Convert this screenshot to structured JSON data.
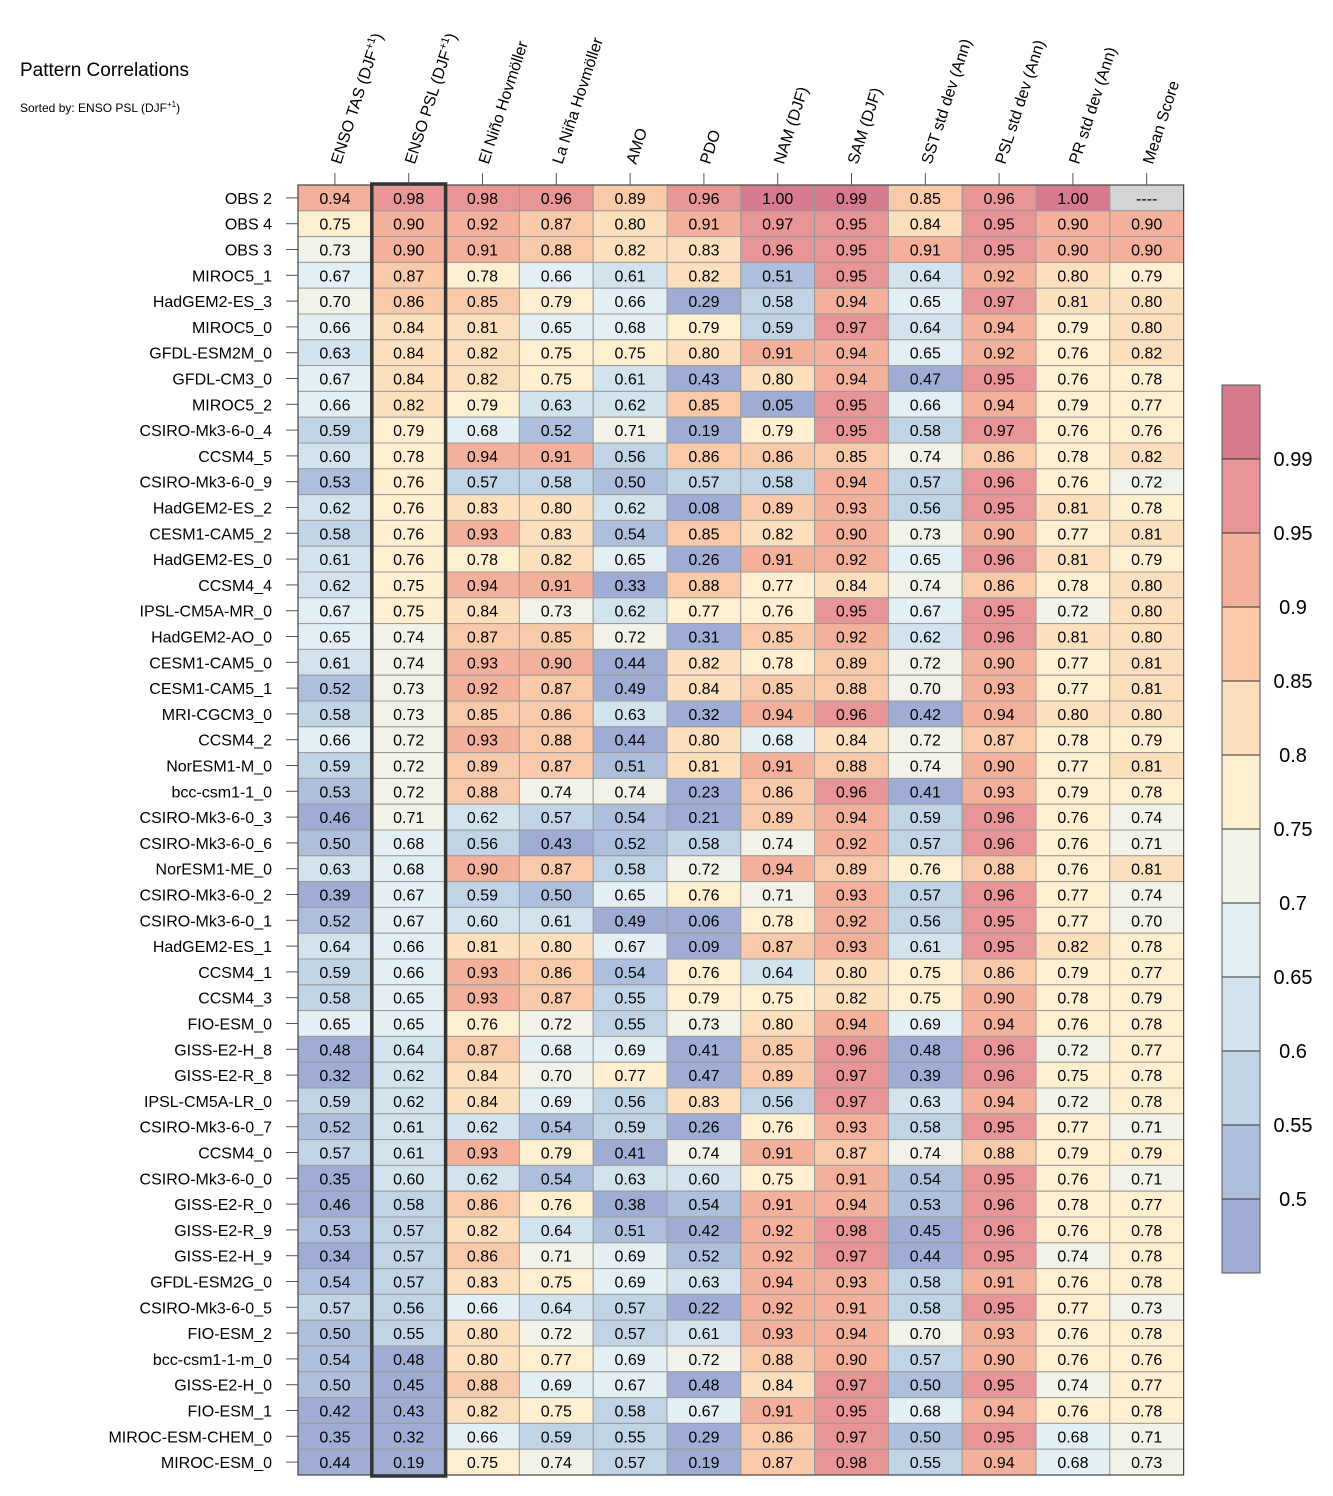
{
  "title": "Pattern Correlations",
  "subtitle": {
    "prefix": "Sorted by: ENSO PSL (DJF",
    "sup": "+1",
    "suffix": ")"
  },
  "chart_data": {
    "type": "heatmap",
    "columns": [
      {
        "label": "ENSO TAS (DJF",
        "sup": "+1",
        "tail": ")"
      },
      {
        "label": "ENSO PSL (DJF",
        "sup": "+1",
        "tail": ")"
      },
      {
        "label": "El Niño Hovmöller"
      },
      {
        "label": "La Niña Hovmöller"
      },
      {
        "label": "AMO"
      },
      {
        "label": "PDO"
      },
      {
        "label": "NAM (DJF)"
      },
      {
        "label": "SAM (DJF)"
      },
      {
        "label": "SST std dev (Ann)"
      },
      {
        "label": "PSL std dev (Ann)"
      },
      {
        "label": "PR std dev (Ann)"
      },
      {
        "label": "Mean Score"
      }
    ],
    "sorted_column_index": 1,
    "missing_label": "----",
    "rows": [
      {
        "name": "OBS 2",
        "values": [
          0.94,
          0.98,
          0.98,
          0.96,
          0.89,
          0.96,
          1.0,
          0.99,
          0.85,
          0.96,
          1.0,
          null
        ]
      },
      {
        "name": "OBS 4",
        "values": [
          0.75,
          0.9,
          0.92,
          0.87,
          0.8,
          0.91,
          0.97,
          0.95,
          0.84,
          0.95,
          0.9,
          0.9
        ]
      },
      {
        "name": "OBS 3",
        "values": [
          0.73,
          0.9,
          0.91,
          0.88,
          0.82,
          0.83,
          0.96,
          0.95,
          0.91,
          0.95,
          0.9,
          0.9
        ]
      },
      {
        "name": "MIROC5_1",
        "values": [
          0.67,
          0.87,
          0.78,
          0.66,
          0.61,
          0.82,
          0.51,
          0.95,
          0.64,
          0.92,
          0.8,
          0.79
        ]
      },
      {
        "name": "HadGEM2-ES_3",
        "values": [
          0.7,
          0.86,
          0.85,
          0.79,
          0.66,
          0.29,
          0.58,
          0.94,
          0.65,
          0.97,
          0.81,
          0.8
        ]
      },
      {
        "name": "MIROC5_0",
        "values": [
          0.66,
          0.84,
          0.81,
          0.65,
          0.68,
          0.79,
          0.59,
          0.97,
          0.64,
          0.94,
          0.79,
          0.8
        ]
      },
      {
        "name": "GFDL-ESM2M_0",
        "values": [
          0.63,
          0.84,
          0.82,
          0.75,
          0.75,
          0.8,
          0.91,
          0.94,
          0.65,
          0.92,
          0.76,
          0.82
        ]
      },
      {
        "name": "GFDL-CM3_0",
        "values": [
          0.67,
          0.84,
          0.82,
          0.75,
          0.61,
          0.43,
          0.8,
          0.94,
          0.47,
          0.95,
          0.76,
          0.78
        ]
      },
      {
        "name": "MIROC5_2",
        "values": [
          0.66,
          0.82,
          0.79,
          0.63,
          0.62,
          0.85,
          0.05,
          0.95,
          0.66,
          0.94,
          0.79,
          0.77
        ]
      },
      {
        "name": "CSIRO-Mk3-6-0_4",
        "values": [
          0.59,
          0.79,
          0.68,
          0.52,
          0.71,
          0.19,
          0.79,
          0.95,
          0.58,
          0.97,
          0.76,
          0.76
        ]
      },
      {
        "name": "CCSM4_5",
        "values": [
          0.6,
          0.78,
          0.94,
          0.91,
          0.56,
          0.86,
          0.86,
          0.85,
          0.74,
          0.86,
          0.78,
          0.82
        ]
      },
      {
        "name": "CSIRO-Mk3-6-0_9",
        "values": [
          0.53,
          0.76,
          0.57,
          0.58,
          0.5,
          0.57,
          0.58,
          0.94,
          0.57,
          0.96,
          0.76,
          0.72
        ]
      },
      {
        "name": "HadGEM2-ES_2",
        "values": [
          0.62,
          0.76,
          0.83,
          0.8,
          0.62,
          0.08,
          0.89,
          0.93,
          0.56,
          0.95,
          0.81,
          0.78
        ]
      },
      {
        "name": "CESM1-CAM5_2",
        "values": [
          0.58,
          0.76,
          0.93,
          0.83,
          0.54,
          0.85,
          0.82,
          0.9,
          0.73,
          0.9,
          0.77,
          0.81
        ]
      },
      {
        "name": "HadGEM2-ES_0",
        "values": [
          0.61,
          0.76,
          0.78,
          0.82,
          0.65,
          0.26,
          0.91,
          0.92,
          0.65,
          0.96,
          0.81,
          0.79
        ]
      },
      {
        "name": "CCSM4_4",
        "values": [
          0.62,
          0.75,
          0.94,
          0.91,
          0.33,
          0.88,
          0.77,
          0.84,
          0.74,
          0.86,
          0.78,
          0.8
        ]
      },
      {
        "name": "IPSL-CM5A-MR_0",
        "values": [
          0.67,
          0.75,
          0.84,
          0.73,
          0.62,
          0.77,
          0.76,
          0.95,
          0.67,
          0.95,
          0.72,
          0.8
        ]
      },
      {
        "name": "HadGEM2-AO_0",
        "values": [
          0.65,
          0.74,
          0.87,
          0.85,
          0.72,
          0.31,
          0.85,
          0.92,
          0.62,
          0.96,
          0.81,
          0.8
        ]
      },
      {
        "name": "CESM1-CAM5_0",
        "values": [
          0.61,
          0.74,
          0.93,
          0.9,
          0.44,
          0.82,
          0.78,
          0.89,
          0.72,
          0.9,
          0.77,
          0.81
        ]
      },
      {
        "name": "CESM1-CAM5_1",
        "values": [
          0.52,
          0.73,
          0.92,
          0.87,
          0.49,
          0.84,
          0.85,
          0.88,
          0.7,
          0.93,
          0.77,
          0.81
        ]
      },
      {
        "name": "MRI-CGCM3_0",
        "values": [
          0.58,
          0.73,
          0.85,
          0.86,
          0.63,
          0.32,
          0.94,
          0.96,
          0.42,
          0.94,
          0.8,
          0.8
        ]
      },
      {
        "name": "CCSM4_2",
        "values": [
          0.66,
          0.72,
          0.93,
          0.88,
          0.44,
          0.8,
          0.68,
          0.84,
          0.72,
          0.87,
          0.78,
          0.79
        ]
      },
      {
        "name": "NorESM1-M_0",
        "values": [
          0.59,
          0.72,
          0.89,
          0.87,
          0.51,
          0.81,
          0.91,
          0.88,
          0.74,
          0.9,
          0.77,
          0.81
        ]
      },
      {
        "name": "bcc-csm1-1_0",
        "values": [
          0.53,
          0.72,
          0.88,
          0.74,
          0.74,
          0.23,
          0.86,
          0.96,
          0.41,
          0.93,
          0.79,
          0.78
        ]
      },
      {
        "name": "CSIRO-Mk3-6-0_3",
        "values": [
          0.46,
          0.71,
          0.62,
          0.57,
          0.54,
          0.21,
          0.89,
          0.94,
          0.59,
          0.96,
          0.76,
          0.74
        ]
      },
      {
        "name": "CSIRO-Mk3-6-0_6",
        "values": [
          0.5,
          0.68,
          0.56,
          0.43,
          0.52,
          0.58,
          0.74,
          0.92,
          0.57,
          0.96,
          0.76,
          0.71
        ]
      },
      {
        "name": "NorESM1-ME_0",
        "values": [
          0.63,
          0.68,
          0.9,
          0.87,
          0.58,
          0.72,
          0.94,
          0.89,
          0.76,
          0.88,
          0.76,
          0.81
        ]
      },
      {
        "name": "CSIRO-Mk3-6-0_2",
        "values": [
          0.39,
          0.67,
          0.59,
          0.5,
          0.65,
          0.76,
          0.71,
          0.93,
          0.57,
          0.96,
          0.77,
          0.74
        ]
      },
      {
        "name": "CSIRO-Mk3-6-0_1",
        "values": [
          0.52,
          0.67,
          0.6,
          0.61,
          0.49,
          0.06,
          0.78,
          0.92,
          0.56,
          0.95,
          0.77,
          0.7
        ]
      },
      {
        "name": "HadGEM2-ES_1",
        "values": [
          0.64,
          0.66,
          0.81,
          0.8,
          0.67,
          0.09,
          0.87,
          0.93,
          0.61,
          0.95,
          0.82,
          0.78
        ]
      },
      {
        "name": "CCSM4_1",
        "values": [
          0.59,
          0.66,
          0.93,
          0.86,
          0.54,
          0.76,
          0.64,
          0.8,
          0.75,
          0.86,
          0.79,
          0.77
        ]
      },
      {
        "name": "CCSM4_3",
        "values": [
          0.58,
          0.65,
          0.93,
          0.87,
          0.55,
          0.79,
          0.75,
          0.82,
          0.75,
          0.9,
          0.78,
          0.79
        ]
      },
      {
        "name": "FIO-ESM_0",
        "values": [
          0.65,
          0.65,
          0.76,
          0.72,
          0.55,
          0.73,
          0.8,
          0.94,
          0.69,
          0.94,
          0.76,
          0.78
        ]
      },
      {
        "name": "GISS-E2-H_8",
        "values": [
          0.48,
          0.64,
          0.87,
          0.68,
          0.69,
          0.41,
          0.85,
          0.96,
          0.48,
          0.96,
          0.72,
          0.77
        ]
      },
      {
        "name": "GISS-E2-R_8",
        "values": [
          0.32,
          0.62,
          0.84,
          0.7,
          0.77,
          0.47,
          0.89,
          0.97,
          0.39,
          0.96,
          0.75,
          0.78
        ]
      },
      {
        "name": "IPSL-CM5A-LR_0",
        "values": [
          0.59,
          0.62,
          0.84,
          0.69,
          0.56,
          0.83,
          0.56,
          0.97,
          0.63,
          0.94,
          0.72,
          0.78
        ]
      },
      {
        "name": "CSIRO-Mk3-6-0_7",
        "values": [
          0.52,
          0.61,
          0.62,
          0.54,
          0.59,
          0.26,
          0.76,
          0.93,
          0.58,
          0.95,
          0.77,
          0.71
        ]
      },
      {
        "name": "CCSM4_0",
        "values": [
          0.57,
          0.61,
          0.93,
          0.79,
          0.41,
          0.74,
          0.91,
          0.87,
          0.74,
          0.88,
          0.79,
          0.79
        ]
      },
      {
        "name": "CSIRO-Mk3-6-0_0",
        "values": [
          0.35,
          0.6,
          0.62,
          0.54,
          0.63,
          0.6,
          0.75,
          0.91,
          0.54,
          0.95,
          0.76,
          0.71
        ]
      },
      {
        "name": "GISS-E2-R_0",
        "values": [
          0.46,
          0.58,
          0.86,
          0.76,
          0.38,
          0.54,
          0.91,
          0.94,
          0.53,
          0.96,
          0.78,
          0.77
        ]
      },
      {
        "name": "GISS-E2-R_9",
        "values": [
          0.53,
          0.57,
          0.82,
          0.64,
          0.51,
          0.42,
          0.92,
          0.98,
          0.45,
          0.96,
          0.76,
          0.78
        ]
      },
      {
        "name": "GISS-E2-H_9",
        "values": [
          0.34,
          0.57,
          0.86,
          0.71,
          0.69,
          0.52,
          0.92,
          0.97,
          0.44,
          0.95,
          0.74,
          0.78
        ]
      },
      {
        "name": "GFDL-ESM2G_0",
        "values": [
          0.54,
          0.57,
          0.83,
          0.75,
          0.69,
          0.63,
          0.94,
          0.93,
          0.58,
          0.91,
          0.76,
          0.78
        ]
      },
      {
        "name": "CSIRO-Mk3-6-0_5",
        "values": [
          0.57,
          0.56,
          0.66,
          0.64,
          0.57,
          0.22,
          0.92,
          0.91,
          0.58,
          0.95,
          0.77,
          0.73
        ]
      },
      {
        "name": "FIO-ESM_2",
        "values": [
          0.5,
          0.55,
          0.8,
          0.72,
          0.57,
          0.61,
          0.93,
          0.94,
          0.7,
          0.93,
          0.76,
          0.78
        ]
      },
      {
        "name": "bcc-csm1-1-m_0",
        "values": [
          0.54,
          0.48,
          0.8,
          0.77,
          0.69,
          0.72,
          0.88,
          0.9,
          0.57,
          0.9,
          0.76,
          0.76
        ]
      },
      {
        "name": "GISS-E2-H_0",
        "values": [
          0.5,
          0.45,
          0.88,
          0.69,
          0.67,
          0.48,
          0.84,
          0.97,
          0.5,
          0.95,
          0.74,
          0.77
        ]
      },
      {
        "name": "FIO-ESM_1",
        "values": [
          0.42,
          0.43,
          0.82,
          0.75,
          0.58,
          0.67,
          0.91,
          0.95,
          0.68,
          0.94,
          0.76,
          0.78
        ]
      },
      {
        "name": "MIROC-ESM-CHEM_0",
        "values": [
          0.35,
          0.32,
          0.66,
          0.59,
          0.55,
          0.29,
          0.86,
          0.97,
          0.5,
          0.95,
          0.68,
          0.71
        ]
      },
      {
        "name": "MIROC-ESM_0",
        "values": [
          0.44,
          0.19,
          0.75,
          0.74,
          0.57,
          0.19,
          0.87,
          0.98,
          0.55,
          0.94,
          0.68,
          0.73
        ]
      }
    ],
    "colorbar": {
      "levels": [
        0.5,
        0.55,
        0.6,
        0.65,
        0.7,
        0.75,
        0.8,
        0.85,
        0.9,
        0.95,
        0.99
      ],
      "tick_labels": [
        "0.5",
        "0.55",
        "0.6",
        "0.65",
        "0.7",
        "0.75",
        "0.8",
        "0.85",
        "0.9",
        "0.95",
        "0.99"
      ],
      "colors": [
        "#9fadd4",
        "#aebfdd",
        "#c0d4e6",
        "#d3e3ee",
        "#e4eff3",
        "#f2f2e8",
        "#fdefd0",
        "#fce0be",
        "#f9caa9",
        "#f3b09b",
        "#e89597",
        "#d67b8e"
      ],
      "missing_color": "#d4d4d4"
    }
  }
}
